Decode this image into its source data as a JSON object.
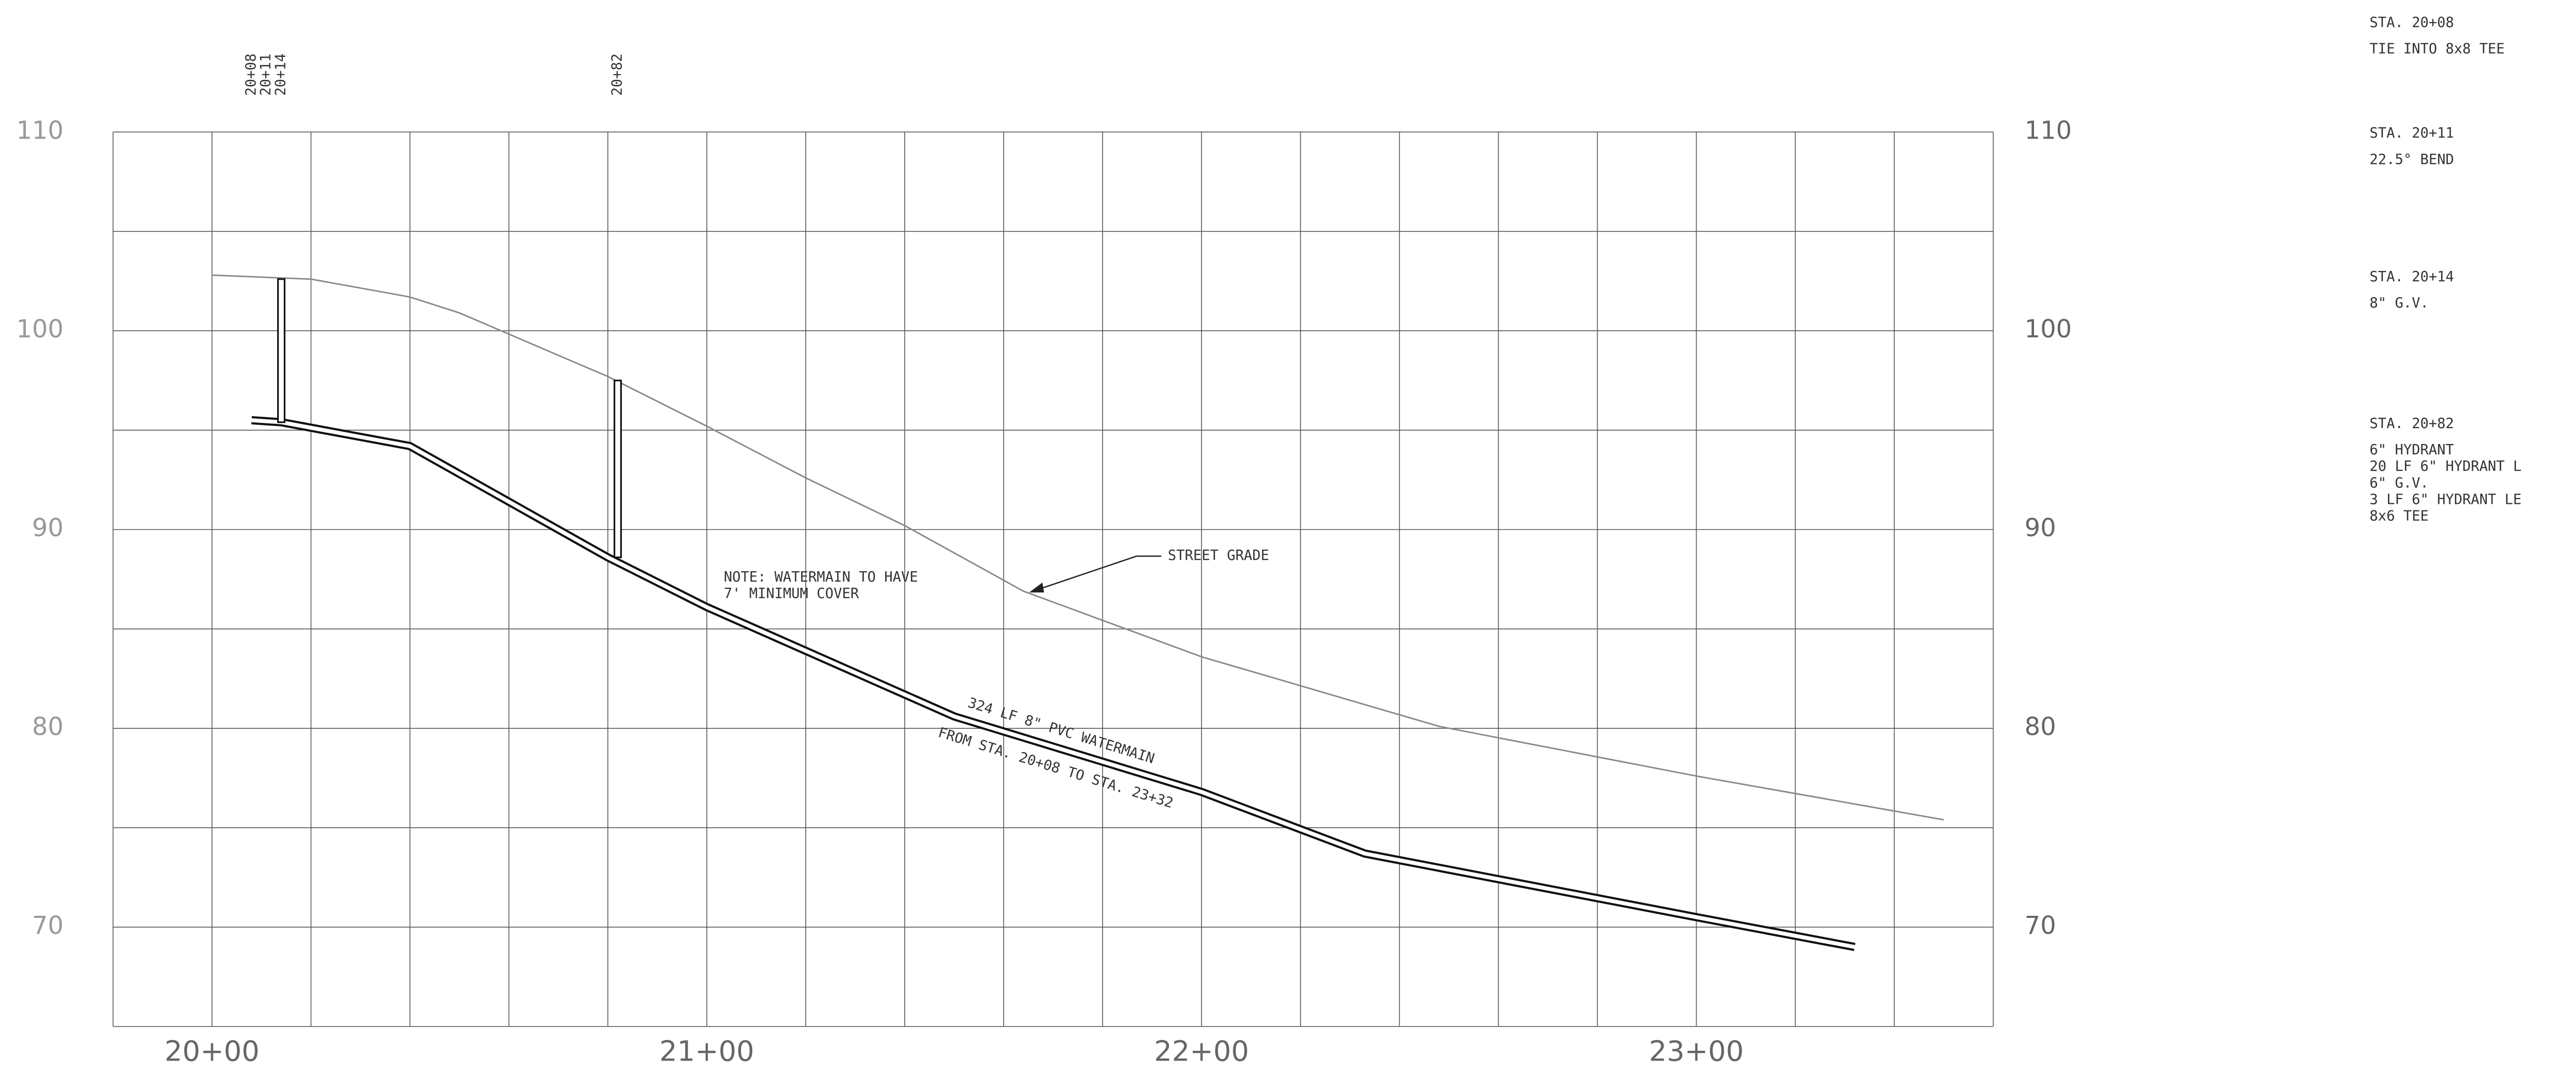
{
  "chart_data": {
    "type": "line",
    "xlim": [
      1980,
      2360
    ],
    "ylim": [
      65,
      110
    ],
    "xticks": [
      {
        "value": 2000,
        "label": "20+00"
      },
      {
        "value": 2100,
        "label": "21+00"
      },
      {
        "value": 2200,
        "label": "22+00"
      },
      {
        "value": 2300,
        "label": "23+00"
      }
    ],
    "yticks": [
      70,
      80,
      90,
      100,
      110
    ],
    "x_grid": [
      1980,
      2000,
      2020,
      2040,
      2060,
      2080,
      2100,
      2120,
      2140,
      2160,
      2180,
      2200,
      2220,
      2240,
      2260,
      2280,
      2300,
      2320,
      2340,
      2360
    ],
    "y_grid": [
      65,
      70,
      75,
      80,
      85,
      90,
      95,
      100,
      105,
      110
    ],
    "grid": true,
    "series": [
      {
        "x": [
          2000,
          2020,
          2040,
          2050,
          2080,
          2100,
          2120,
          2140,
          2164,
          2200,
          2248,
          2300,
          2350
        ],
        "values": [
          102.8,
          102.6,
          101.7,
          100.9,
          97.7,
          95.2,
          92.6,
          90.2,
          86.9,
          83.6,
          80.1,
          77.6,
          75.4
        ],
        "color": "#888888"
      },
      {
        "x": [
          2008,
          2014,
          2040,
          2080,
          2100,
          2150,
          2200,
          2233,
          2300,
          2332
        ],
        "values": [
          95.5,
          95.4,
          94.2,
          88.6,
          86.1,
          80.6,
          76.8,
          73.7,
          70.5,
          69.0
        ],
        "color": "#111111"
      }
    ],
    "risers": [
      {
        "x": 2014,
        "values": [
          95.4,
          102.6
        ]
      },
      {
        "x": 2082,
        "values": [
          88.6,
          97.5
        ]
      }
    ],
    "station_marks": [
      {
        "value": 2008,
        "label": "20+08"
      },
      {
        "value": 2011,
        "label": "20+11"
      },
      {
        "value": 2014,
        "label": "20+14"
      },
      {
        "value": 2082,
        "label": "20+82"
      }
    ],
    "annotations": {
      "note": [
        "NOTE: WATERMAIN TO HAVE",
        "7' MINIMUM COVER"
      ],
      "street_grade": "STREET GRADE",
      "pipe": [
        "324 LF 8\" PVC WATERMAIN",
        "FROM STA. 20+08 TO STA. 23+32"
      ]
    },
    "notes": [
      {
        "station": "STA. 20+08",
        "lines": [
          "TIE INTO 8x8 TEE"
        ]
      },
      {
        "station": "STA. 20+11",
        "lines": [
          "22.5° BEND"
        ]
      },
      {
        "station": "STA. 20+14",
        "lines": [
          "8\" G.V."
        ]
      },
      {
        "station": "STA. 20+82",
        "lines": [
          "6\" HYDRANT",
          "20 LF 6\" HYDRANT L",
          "6\" G.V.",
          "3 LF 6\" HYDRANT LE",
          "8x6 TEE"
        ]
      }
    ]
  }
}
